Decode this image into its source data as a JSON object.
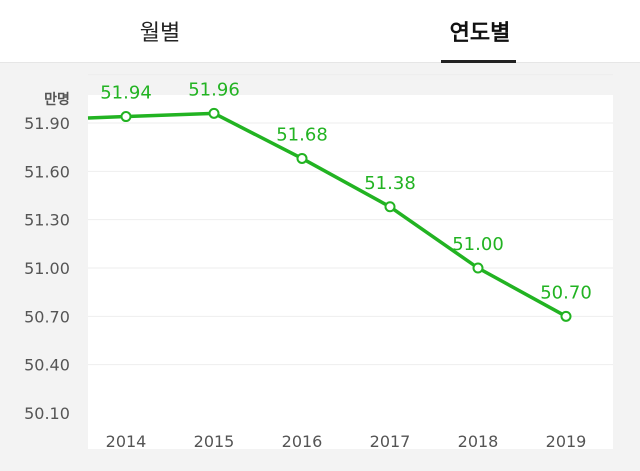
{
  "tabs": [
    {
      "label": "월별",
      "active": false
    },
    {
      "label": "연도별",
      "active": true
    }
  ],
  "colors": {
    "line": "#22b322",
    "label": "#22b322",
    "grid": "#eeeeee",
    "axis_text": "#555555",
    "plot_bg": "#ffffff"
  },
  "chart_data": {
    "type": "line",
    "unit_label": "만명",
    "x": [
      "2014",
      "2015",
      "2016",
      "2017",
      "2018",
      "2019"
    ],
    "series": [
      {
        "values": [
          51.94,
          51.96,
          51.68,
          51.38,
          51.0,
          50.7
        ]
      }
    ],
    "data_labels": [
      "51.94",
      "51.96",
      "51.68",
      "51.38",
      "51.00",
      "50.70"
    ],
    "y_ticks": [
      51.9,
      51.6,
      51.3,
      51.0,
      50.7,
      50.4,
      50.1
    ],
    "y_tick_labels": [
      "51.90",
      "51.60",
      "51.30",
      "51.00",
      "50.70",
      "50.40",
      "50.10"
    ],
    "ylim": [
      50.1,
      52.2
    ],
    "grid": true,
    "line_extends_left": true
  }
}
